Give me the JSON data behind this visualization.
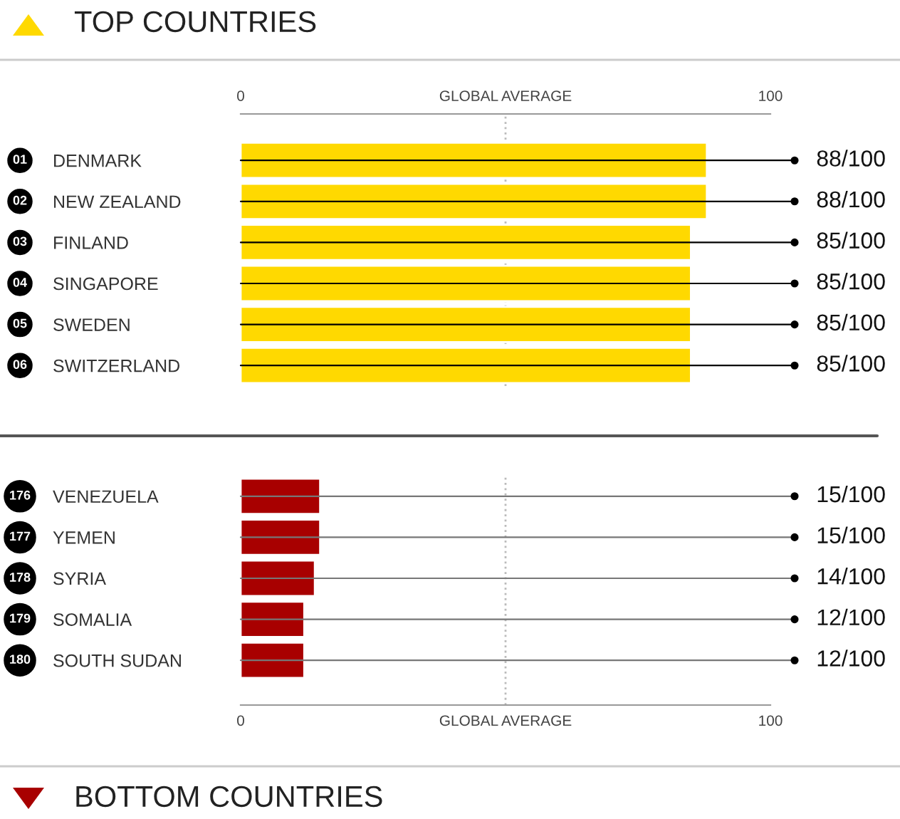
{
  "chart_data": [
    {
      "type": "bar",
      "orientation": "horizontal",
      "title": "TOP COUNTRIES",
      "color": "#ffd900",
      "categories": [
        "DENMARK",
        "NEW ZEALAND",
        "FINLAND",
        "SINGAPORE",
        "SWEDEN",
        "SWITZERLAND"
      ],
      "values": [
        88,
        88,
        85,
        85,
        85,
        85
      ],
      "value_labels": [
        "88/100",
        "88/100",
        "85/100",
        "85/100",
        "85/100",
        "85/100"
      ],
      "annotations": [
        "01",
        "02",
        "03",
        "04",
        "05",
        "06"
      ],
      "xlim": [
        0,
        100
      ],
      "xticks": [
        0,
        {
          "value": 50,
          "label": "GLOBAL AVERAGE"
        },
        100
      ],
      "ref_lines": [
        {
          "axis": "x",
          "value": 50,
          "color": "#bbbbbb",
          "line_style": "dotted"
        }
      ]
    },
    {
      "type": "bar",
      "orientation": "horizontal",
      "title": "BOTTOM COUNTRIES",
      "color": "#a80000",
      "categories": [
        "VENEZUELA",
        "YEMEN",
        "SYRIA",
        "SOMALIA",
        "SOUTH SUDAN"
      ],
      "values": [
        15,
        15,
        14,
        12,
        12
      ],
      "value_labels": [
        "15/100",
        "15/100",
        "14/100",
        "12/100",
        "12/100"
      ],
      "annotations": [
        "176",
        "177",
        "178",
        "179",
        "180"
      ],
      "xlim": [
        0,
        100
      ],
      "xticks": [
        0,
        {
          "value": 50,
          "label": "GLOBAL AVERAGE"
        },
        100
      ],
      "ref_lines": [
        {
          "axis": "x",
          "value": 50,
          "color": "#bbbbbb",
          "line_style": "dotted"
        }
      ]
    }
  ]
}
